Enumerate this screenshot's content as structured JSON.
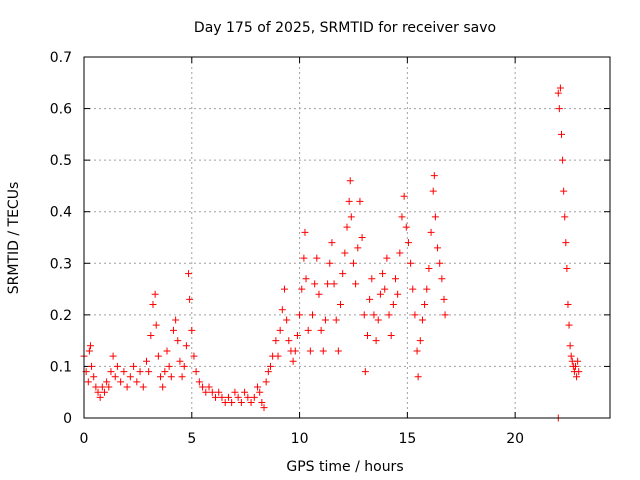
{
  "chart_data": {
    "type": "scatter",
    "title": "Day 175 of 2025, SRMTID for receiver savo",
    "xlabel": "GPS time / hours",
    "ylabel": "SRMTID / TECUs",
    "xlim": [
      0,
      24.4
    ],
    "ylim": [
      0,
      0.7
    ],
    "xticks": [
      0,
      5,
      10,
      15,
      20
    ],
    "xtick_labels": [
      "0",
      "5",
      "10",
      "15",
      "20"
    ],
    "yticks": [
      0,
      0.1,
      0.2,
      0.3,
      0.4,
      0.5,
      0.6,
      0.7
    ],
    "ytick_labels": [
      "0",
      "0.1",
      "0.2",
      "0.3",
      "0.4",
      "0.5",
      "0.6",
      "0.7"
    ],
    "grid": true,
    "marker": "+",
    "marker_color": "#ff0000",
    "grid_color": "#a0a0a0",
    "series": [
      {
        "name": "SRMTID",
        "points": [
          [
            0.0,
            0.12
          ],
          [
            0.1,
            0.09
          ],
          [
            0.2,
            0.07
          ],
          [
            0.25,
            0.13
          ],
          [
            0.3,
            0.14
          ],
          [
            0.35,
            0.1
          ],
          [
            0.45,
            0.08
          ],
          [
            0.55,
            0.06
          ],
          [
            0.65,
            0.05
          ],
          [
            0.75,
            0.04
          ],
          [
            0.85,
            0.06
          ],
          [
            0.95,
            0.05
          ],
          [
            1.05,
            0.07
          ],
          [
            1.15,
            0.06
          ],
          [
            1.25,
            0.09
          ],
          [
            1.35,
            0.12
          ],
          [
            1.45,
            0.08
          ],
          [
            1.55,
            0.1
          ],
          [
            1.7,
            0.07
          ],
          [
            1.85,
            0.09
          ],
          [
            2.0,
            0.06
          ],
          [
            2.15,
            0.08
          ],
          [
            2.3,
            0.1
          ],
          [
            2.45,
            0.07
          ],
          [
            2.6,
            0.09
          ],
          [
            2.75,
            0.06
          ],
          [
            2.9,
            0.11
          ],
          [
            3.0,
            0.09
          ],
          [
            3.1,
            0.16
          ],
          [
            3.2,
            0.22
          ],
          [
            3.3,
            0.24
          ],
          [
            3.35,
            0.18
          ],
          [
            3.45,
            0.12
          ],
          [
            3.55,
            0.08
          ],
          [
            3.65,
            0.06
          ],
          [
            3.75,
            0.09
          ],
          [
            3.85,
            0.13
          ],
          [
            3.95,
            0.1
          ],
          [
            4.05,
            0.08
          ],
          [
            4.15,
            0.17
          ],
          [
            4.25,
            0.19
          ],
          [
            4.35,
            0.15
          ],
          [
            4.45,
            0.11
          ],
          [
            4.55,
            0.08
          ],
          [
            4.65,
            0.1
          ],
          [
            4.75,
            0.14
          ],
          [
            4.85,
            0.28
          ],
          [
            4.9,
            0.23
          ],
          [
            5.0,
            0.17
          ],
          [
            5.1,
            0.12
          ],
          [
            5.2,
            0.09
          ],
          [
            5.35,
            0.07
          ],
          [
            5.5,
            0.06
          ],
          [
            5.65,
            0.05
          ],
          [
            5.8,
            0.06
          ],
          [
            5.95,
            0.05
          ],
          [
            6.1,
            0.04
          ],
          [
            6.25,
            0.05
          ],
          [
            6.4,
            0.04
          ],
          [
            6.55,
            0.03
          ],
          [
            6.7,
            0.04
          ],
          [
            6.85,
            0.03
          ],
          [
            7.0,
            0.05
          ],
          [
            7.15,
            0.04
          ],
          [
            7.3,
            0.03
          ],
          [
            7.45,
            0.05
          ],
          [
            7.6,
            0.04
          ],
          [
            7.75,
            0.03
          ],
          [
            7.9,
            0.04
          ],
          [
            8.05,
            0.06
          ],
          [
            8.15,
            0.05
          ],
          [
            8.25,
            0.03
          ],
          [
            8.35,
            0.02
          ],
          [
            8.45,
            0.07
          ],
          [
            8.55,
            0.09
          ],
          [
            8.65,
            0.1
          ],
          [
            8.75,
            0.12
          ],
          [
            8.9,
            0.15
          ],
          [
            9.0,
            0.12
          ],
          [
            9.1,
            0.17
          ],
          [
            9.2,
            0.21
          ],
          [
            9.3,
            0.25
          ],
          [
            9.4,
            0.19
          ],
          [
            9.5,
            0.15
          ],
          [
            9.6,
            0.13
          ],
          [
            9.7,
            0.11
          ],
          [
            9.8,
            0.13
          ],
          [
            9.9,
            0.16
          ],
          [
            10.0,
            0.2
          ],
          [
            10.1,
            0.25
          ],
          [
            10.2,
            0.31
          ],
          [
            10.25,
            0.36
          ],
          [
            10.3,
            0.27
          ],
          [
            10.4,
            0.17
          ],
          [
            10.5,
            0.13
          ],
          [
            10.6,
            0.2
          ],
          [
            10.7,
            0.26
          ],
          [
            10.8,
            0.31
          ],
          [
            10.9,
            0.24
          ],
          [
            11.0,
            0.17
          ],
          [
            11.1,
            0.13
          ],
          [
            11.2,
            0.19
          ],
          [
            11.3,
            0.26
          ],
          [
            11.4,
            0.3
          ],
          [
            11.5,
            0.34
          ],
          [
            11.6,
            0.26
          ],
          [
            11.7,
            0.19
          ],
          [
            11.8,
            0.13
          ],
          [
            11.9,
            0.22
          ],
          [
            12.0,
            0.28
          ],
          [
            12.1,
            0.32
          ],
          [
            12.2,
            0.37
          ],
          [
            12.3,
            0.42
          ],
          [
            12.35,
            0.46
          ],
          [
            12.4,
            0.39
          ],
          [
            12.5,
            0.3
          ],
          [
            12.6,
            0.26
          ],
          [
            12.7,
            0.33
          ],
          [
            12.8,
            0.42
          ],
          [
            12.9,
            0.35
          ],
          [
            13.0,
            0.2
          ],
          [
            13.05,
            0.09
          ],
          [
            13.15,
            0.16
          ],
          [
            13.25,
            0.23
          ],
          [
            13.35,
            0.27
          ],
          [
            13.45,
            0.2
          ],
          [
            13.55,
            0.15
          ],
          [
            13.65,
            0.19
          ],
          [
            13.75,
            0.24
          ],
          [
            13.85,
            0.28
          ],
          [
            13.95,
            0.25
          ],
          [
            14.05,
            0.31
          ],
          [
            14.15,
            0.2
          ],
          [
            14.25,
            0.16
          ],
          [
            14.35,
            0.22
          ],
          [
            14.45,
            0.27
          ],
          [
            14.55,
            0.24
          ],
          [
            14.65,
            0.32
          ],
          [
            14.75,
            0.39
          ],
          [
            14.85,
            0.43
          ],
          [
            14.95,
            0.37
          ],
          [
            15.05,
            0.34
          ],
          [
            15.15,
            0.3
          ],
          [
            15.25,
            0.25
          ],
          [
            15.35,
            0.2
          ],
          [
            15.45,
            0.13
          ],
          [
            15.5,
            0.08
          ],
          [
            15.6,
            0.15
          ],
          [
            15.7,
            0.19
          ],
          [
            15.8,
            0.22
          ],
          [
            15.9,
            0.25
          ],
          [
            16.0,
            0.29
          ],
          [
            16.1,
            0.36
          ],
          [
            16.2,
            0.44
          ],
          [
            16.25,
            0.47
          ],
          [
            16.3,
            0.39
          ],
          [
            16.4,
            0.33
          ],
          [
            16.5,
            0.3
          ],
          [
            16.6,
            0.27
          ],
          [
            16.7,
            0.23
          ],
          [
            16.75,
            0.2
          ],
          [
            22.0,
            0.0
          ],
          [
            22.0,
            0.63
          ],
          [
            22.05,
            0.6
          ],
          [
            22.1,
            0.64
          ],
          [
            22.15,
            0.55
          ],
          [
            22.2,
            0.5
          ],
          [
            22.25,
            0.44
          ],
          [
            22.3,
            0.39
          ],
          [
            22.35,
            0.34
          ],
          [
            22.4,
            0.29
          ],
          [
            22.45,
            0.22
          ],
          [
            22.5,
            0.18
          ],
          [
            22.55,
            0.14
          ],
          [
            22.6,
            0.12
          ],
          [
            22.65,
            0.11
          ],
          [
            22.7,
            0.1
          ],
          [
            22.75,
            0.09
          ],
          [
            22.8,
            0.1
          ],
          [
            22.85,
            0.08
          ],
          [
            22.9,
            0.11
          ],
          [
            22.95,
            0.09
          ]
        ]
      }
    ]
  }
}
